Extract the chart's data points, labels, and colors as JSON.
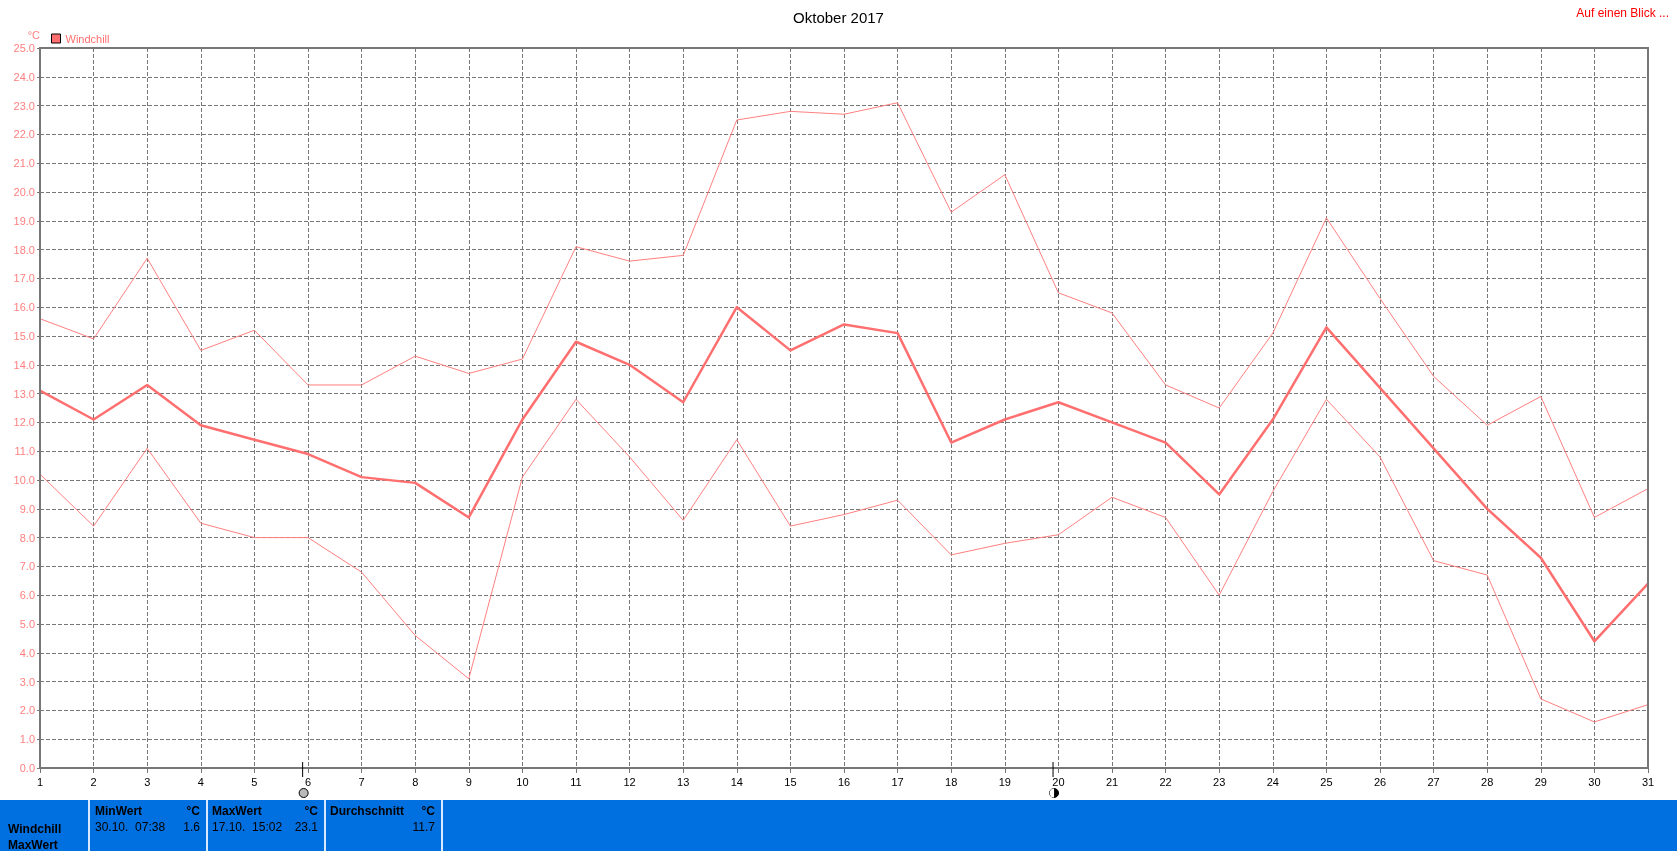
{
  "chart_data": {
    "type": "line",
    "title": "Oktober 2017",
    "ylabel": "°C",
    "x": [
      1,
      2,
      3,
      4,
      5,
      6,
      7,
      8,
      9,
      10,
      11,
      12,
      13,
      14,
      15,
      16,
      17,
      18,
      19,
      20,
      21,
      22,
      23,
      24,
      25,
      26,
      27,
      28,
      29,
      30,
      31
    ],
    "series": [
      {
        "color": "#ff8080",
        "values": [
          15.6,
          14.9,
          17.7,
          14.5,
          15.2,
          13.3,
          13.3,
          14.3,
          13.7,
          14.2,
          18.1,
          17.6,
          17.8,
          22.5,
          22.8,
          22.7,
          23.1,
          19.3,
          20.6,
          16.5,
          15.8,
          13.3,
          12.5,
          15.1,
          19.1,
          16.3,
          13.6,
          11.9,
          12.9,
          8.7,
          9.7
        ]
      },
      {
        "name": "Windchill",
        "color": "#ff6f6f",
        "values": [
          13.1,
          12.1,
          13.3,
          11.9,
          11.4,
          10.9,
          10.1,
          9.9,
          8.7,
          12.1,
          14.8,
          14.0,
          12.7,
          16.0,
          14.5,
          15.4,
          15.1,
          11.3,
          12.1,
          12.7,
          12.0,
          11.3,
          9.5,
          12.1,
          15.3,
          13.2,
          11.1,
          9.0,
          7.3,
          4.4,
          6.4
        ]
      },
      {
        "color": "#ff8080",
        "values": [
          10.2,
          8.4,
          11.1,
          8.5,
          8.0,
          8.0,
          6.8,
          4.6,
          3.1,
          10.1,
          12.8,
          10.8,
          8.6,
          11.4,
          8.4,
          8.8,
          9.3,
          7.4,
          7.8,
          8.1,
          9.4,
          8.7,
          6.0,
          9.6,
          12.8,
          10.8,
          7.2,
          6.7,
          2.4,
          1.6,
          2.2
        ]
      }
    ],
    "xlim": [
      1,
      31
    ],
    "xticks": [
      1,
      2,
      3,
      4,
      5,
      6,
      7,
      8,
      9,
      10,
      11,
      12,
      13,
      14,
      15,
      16,
      17,
      18,
      19,
      20,
      21,
      22,
      23,
      24,
      25,
      26,
      27,
      28,
      29,
      30,
      31
    ],
    "ylim": [
      0,
      25
    ],
    "yticks": [
      {
        "value": 0,
        "label": "0.0"
      },
      {
        "value": 1,
        "label": "1.0"
      },
      {
        "value": 2,
        "label": "2.0"
      },
      {
        "value": 3,
        "label": "3.0"
      },
      {
        "value": 4,
        "label": "4.0"
      },
      {
        "value": 5,
        "label": "5.0"
      },
      {
        "value": 6,
        "label": "6.0"
      },
      {
        "value": 7,
        "label": "7.0"
      },
      {
        "value": 8,
        "label": "8.0"
      },
      {
        "value": 9,
        "label": "9.0"
      },
      {
        "value": 10,
        "label": "10.0"
      },
      {
        "value": 11,
        "label": "11.0"
      },
      {
        "value": 12,
        "label": "12.0"
      },
      {
        "value": 13,
        "label": "13.0"
      },
      {
        "value": 14,
        "label": "14.0"
      },
      {
        "value": 15,
        "label": "15.0"
      },
      {
        "value": 16,
        "label": "16.0"
      },
      {
        "value": 17,
        "label": "17.0"
      },
      {
        "value": 18,
        "label": "18.0"
      },
      {
        "value": 19,
        "label": "19.0"
      },
      {
        "value": 20,
        "label": "20.0"
      },
      {
        "value": 21,
        "label": "21.0"
      },
      {
        "value": 22,
        "label": "22.0"
      },
      {
        "value": 23,
        "label": "23.0"
      },
      {
        "value": 24,
        "label": "24.0"
      },
      {
        "value": 25,
        "label": "25.0"
      }
    ],
    "grid": true,
    "legend": "top left",
    "marker": "none",
    "line_style": "solid",
    "annotations": [
      "Auf einen Blick ...",
      "MinWert",
      "°C",
      "MaxWert",
      "°C",
      "Durchschnitt",
      "°C",
      "Windchill",
      "30.10.  07:38",
      "1.6",
      "17.10.  15:02",
      "23.1",
      "11.7",
      "MaxWert"
    ]
  }
}
